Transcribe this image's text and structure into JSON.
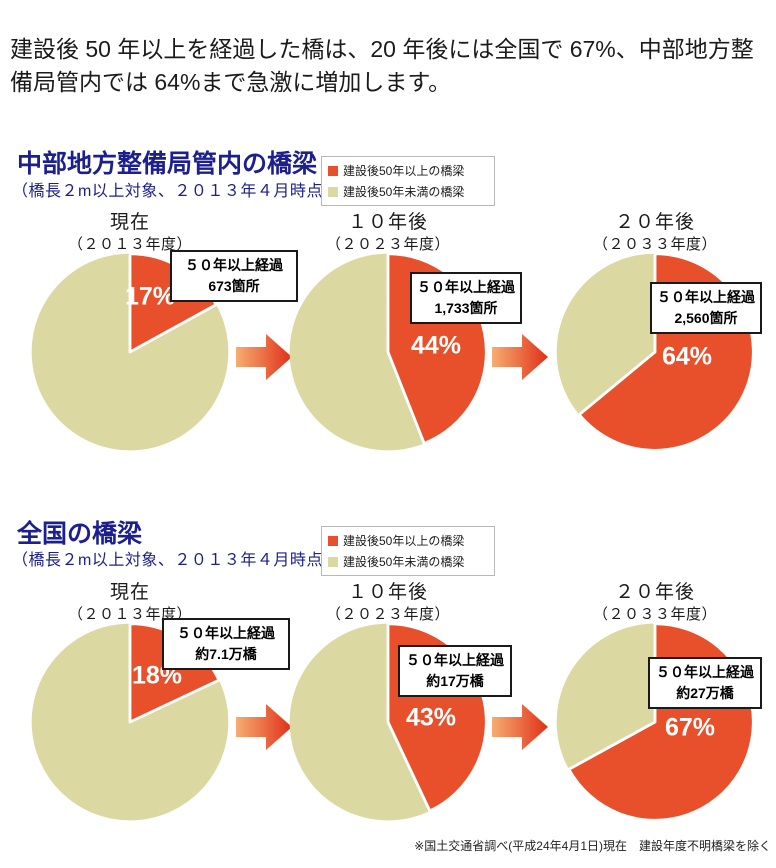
{
  "intro": "建設後 50 年以上を経過した橋は、20 年後には全国で 67%、中部地方整備局管内では 64%まで急激に増加します。",
  "colors": {
    "over50": "#e8502c",
    "under50": "#dcd8a2",
    "heading_blue": "#1c1f8e",
    "arrow_start": "#f6ad72",
    "arrow_end": "#e03018",
    "callout_border": "#1a1a1a"
  },
  "legend": {
    "items": [
      {
        "label": "建設後50年以上の橋梁",
        "color": "#e8502c"
      },
      {
        "label": "建設後50年未満の橋梁",
        "color": "#dcd8a2"
      }
    ]
  },
  "chart_data": [
    {
      "type": "pie",
      "section_title": "中部地方整備局管内の橋梁",
      "section_subtitle": "（橋長２m以上対象、２０１３年４月時点）",
      "categories": [
        "建設後50年以上の橋梁",
        "建設後50年未満の橋梁"
      ],
      "colors": [
        "#e8502c",
        "#dcd8a2"
      ],
      "legend_position": "top-right",
      "pies": [
        {
          "period": "現在",
          "year": "（２０１３年度）",
          "percent": 17,
          "other_percent": 83,
          "percent_label": "17%",
          "callout_line1": "５０年以上経過",
          "callout_line2": "673箇所"
        },
        {
          "period": "１０年後",
          "year": "（２０２３年度）",
          "percent": 44,
          "other_percent": 56,
          "percent_label": "44%",
          "callout_line1": "５０年以上経過",
          "callout_line2": "1,733箇所"
        },
        {
          "period": "２０年後",
          "year": "（２０３３年度）",
          "percent": 64,
          "other_percent": 36,
          "percent_label": "64%",
          "callout_line1": "５０年以上経過",
          "callout_line2": "2,560箇所"
        }
      ]
    },
    {
      "type": "pie",
      "section_title": "全国の橋梁",
      "section_subtitle": "（橋長２m以上対象、２０１３年４月時点）",
      "categories": [
        "建設後50年以上の橋梁",
        "建設後50年未満の橋梁"
      ],
      "colors": [
        "#e8502c",
        "#dcd8a2"
      ],
      "legend_position": "top-right",
      "pies": [
        {
          "period": "現在",
          "year": "（２０１３年度）",
          "percent": 18,
          "other_percent": 82,
          "percent_label": "18%",
          "callout_line1": "５０年以上経過",
          "callout_line2": "約7.1万橋"
        },
        {
          "period": "１０年後",
          "year": "（２０２３年度）",
          "percent": 43,
          "other_percent": 57,
          "percent_label": "43%",
          "callout_line1": "５０年以上経過",
          "callout_line2": "約17万橋"
        },
        {
          "period": "２０年後",
          "year": "（２０３３年度）",
          "percent": 67,
          "other_percent": 33,
          "percent_label": "67%",
          "callout_line1": "５０年以上経過",
          "callout_line2": "約27万橋"
        }
      ]
    }
  ],
  "footnote": "※国土交通省調べ(平成24年4月1日)現在　建設年度不明橋梁を除く"
}
